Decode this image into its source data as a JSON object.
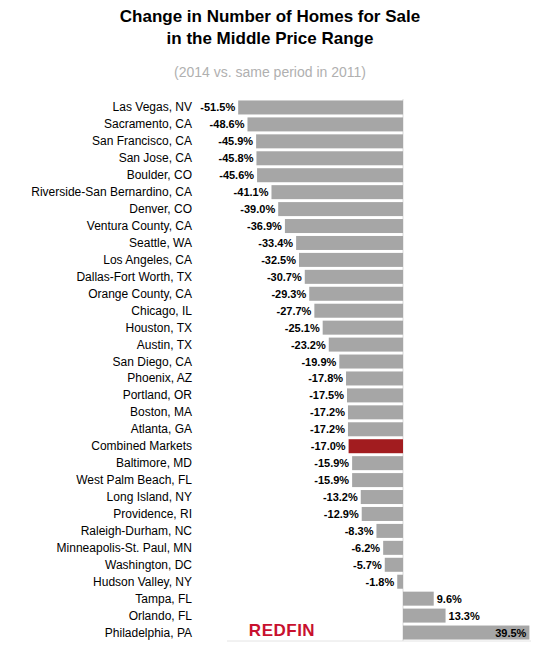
{
  "chart_data": {
    "type": "bar",
    "orientation": "horizontal",
    "title": "Change in Number of Homes for Sale\nin the Middle Price Range",
    "subtitle": "(2014 vs. same period in 2011)",
    "annotations": [
      "REDFIN"
    ],
    "categories": [
      "Las Vegas, NV",
      "Sacramento, CA",
      "San Francisco, CA",
      "San Jose, CA",
      "Boulder, CO",
      "Riverside-San Bernardino, CA",
      "Denver, CO",
      "Ventura County, CA",
      "Seattle, WA",
      "Los Angeles, CA",
      "Dallas-Fort Worth, TX",
      "Orange County, CA",
      "Chicago, IL",
      "Houston, TX",
      "Austin, TX",
      "San Diego, CA",
      "Phoenix, AZ",
      "Portland, OR",
      "Boston, MA",
      "Atlanta, GA",
      "Combined Markets",
      "Baltimore, MD",
      "West Palm Beach, FL",
      "Long Island, NY",
      "Providence, RI",
      "Raleigh-Durham, NC",
      "Minneapolis-St. Paul, MN",
      "Washington, DC",
      "Hudson Valley, NY",
      "Tampa, FL",
      "Orlando, FL",
      "Philadelphia, PA"
    ],
    "values": [
      -51.5,
      -48.6,
      -45.9,
      -45.8,
      -45.6,
      -41.1,
      -39.0,
      -36.9,
      -33.4,
      -32.5,
      -30.7,
      -29.3,
      -27.7,
      -25.1,
      -23.2,
      -19.9,
      -17.8,
      -17.5,
      -17.2,
      -17.2,
      -17.0,
      -15.9,
      -15.9,
      -13.2,
      -12.9,
      -8.3,
      -6.2,
      -5.7,
      -1.8,
      9.6,
      13.3,
      39.5
    ],
    "value_labels": [
      "-51.5%",
      "-48.6%",
      "-45.9%",
      "-45.8%",
      "-45.6%",
      "-41.1%",
      "-39.0%",
      "-36.9%",
      "-33.4%",
      "-32.5%",
      "-30.7%",
      "-29.3%",
      "-27.7%",
      "-25.1%",
      "-23.2%",
      "-19.9%",
      "-17.8%",
      "-17.5%",
      "-17.2%",
      "-17.2%",
      "-17.0%",
      "-15.9%",
      "-15.9%",
      "-13.2%",
      "-12.9%",
      "-8.3%",
      "-6.2%",
      "-5.7%",
      "-1.8%",
      "9.6%",
      "13.3%",
      "39.5%"
    ],
    "colors": [
      "#a6a6a6",
      "#a6a6a6",
      "#a6a6a6",
      "#a6a6a6",
      "#a6a6a6",
      "#a6a6a6",
      "#a6a6a6",
      "#a6a6a6",
      "#a6a6a6",
      "#a6a6a6",
      "#a6a6a6",
      "#a6a6a6",
      "#a6a6a6",
      "#a6a6a6",
      "#a6a6a6",
      "#a6a6a6",
      "#a6a6a6",
      "#a6a6a6",
      "#a6a6a6",
      "#a6a6a6",
      "#a21c1f",
      "#a6a6a6",
      "#a6a6a6",
      "#a6a6a6",
      "#a6a6a6",
      "#a6a6a6",
      "#a6a6a6",
      "#a6a6a6",
      "#a6a6a6",
      "#a6a6a6",
      "#a6a6a6",
      "#a6a6a6"
    ],
    "xlim": [
      -55,
      40
    ],
    "xticks": [
      0
    ],
    "tick_labels": false,
    "grid": false,
    "data_labels": true
  }
}
